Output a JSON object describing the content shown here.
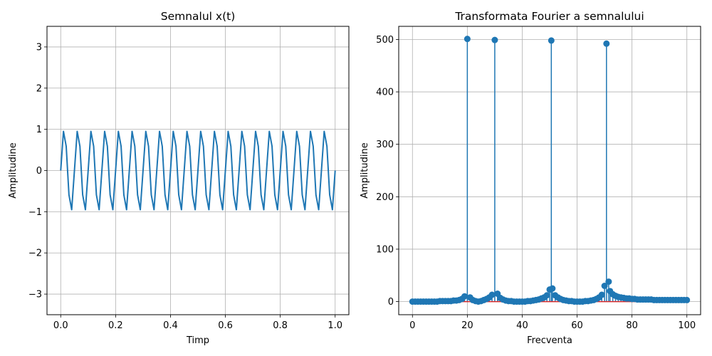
{
  "colors": {
    "series": "#1f77b4",
    "baseline": "#d62728",
    "grid": "#b0b0b0",
    "axis": "#000000",
    "background": "#ffffff"
  },
  "chart_data": [
    {
      "type": "line",
      "title": "Semnalul x(t)",
      "xlabel": "Timp",
      "ylabel": "Amplitudine",
      "xlim": [
        -0.05,
        1.05
      ],
      "ylim": [
        -3.5,
        3.5
      ],
      "xticks": [
        0.0,
        0.2,
        0.4,
        0.6,
        0.8,
        1.0
      ],
      "xtick_labels": [
        "0.0",
        "0.2",
        "0.4",
        "0.6",
        "0.8",
        "1.0"
      ],
      "yticks": [
        -3,
        -2,
        -1,
        0,
        1,
        2,
        3
      ],
      "ytick_labels": [
        "−3",
        "−2",
        "−1",
        "0",
        "1",
        "2",
        "3"
      ],
      "grid": true,
      "signal": {
        "samples": 101,
        "t_range": [
          0,
          1
        ],
        "components": [
          {
            "frequency": 20,
            "amplitude": 1
          },
          {
            "frequency": 30,
            "amplitude": 1
          },
          {
            "frequency": 50,
            "amplitude": 1
          },
          {
            "frequency": 70,
            "amplitude": 1
          }
        ]
      }
    },
    {
      "type": "stem",
      "title": "Transformata Fourier a semnalului",
      "xlabel": "Frecventa",
      "ylabel": "Amplitudine",
      "xlim": [
        -5,
        105
      ],
      "ylim": [
        -25,
        525
      ],
      "xticks": [
        0,
        20,
        40,
        60,
        80,
        100
      ],
      "xtick_labels": [
        "0",
        "20",
        "40",
        "60",
        "80",
        "100"
      ],
      "yticks": [
        0,
        100,
        200,
        300,
        400,
        500
      ],
      "ytick_labels": [
        "0",
        "100",
        "200",
        "300",
        "400",
        "500"
      ],
      "grid": true,
      "baseline": 0,
      "points": [
        [
          0,
          0
        ],
        [
          1,
          0
        ],
        [
          2,
          0
        ],
        [
          3,
          0
        ],
        [
          4,
          0
        ],
        [
          5,
          0
        ],
        [
          6,
          0
        ],
        [
          7,
          0
        ],
        [
          8,
          0
        ],
        [
          9,
          0
        ],
        [
          10,
          1
        ],
        [
          11,
          1
        ],
        [
          12,
          1
        ],
        [
          13,
          1
        ],
        [
          14,
          1
        ],
        [
          15,
          2
        ],
        [
          16,
          2
        ],
        [
          17,
          3
        ],
        [
          18,
          5
        ],
        [
          19,
          10
        ],
        [
          20,
          501
        ],
        [
          21,
          8
        ],
        [
          22,
          3
        ],
        [
          23,
          1
        ],
        [
          24,
          0
        ],
        [
          25,
          1
        ],
        [
          26,
          3
        ],
        [
          27,
          5
        ],
        [
          28,
          8
        ],
        [
          29,
          13
        ],
        [
          30,
          499
        ],
        [
          31,
          15
        ],
        [
          32,
          7
        ],
        [
          33,
          4
        ],
        [
          34,
          2
        ],
        [
          35,
          1
        ],
        [
          36,
          1
        ],
        [
          37,
          0
        ],
        [
          38,
          0
        ],
        [
          39,
          0
        ],
        [
          40,
          0
        ],
        [
          41,
          0
        ],
        [
          42,
          1
        ],
        [
          43,
          1
        ],
        [
          44,
          2
        ],
        [
          45,
          3
        ],
        [
          46,
          4
        ],
        [
          47,
          6
        ],
        [
          48,
          8
        ],
        [
          49,
          12
        ],
        [
          50,
          23
        ],
        [
          50.6,
          498
        ],
        [
          51,
          25
        ],
        [
          52,
          12
        ],
        [
          53,
          8
        ],
        [
          54,
          5
        ],
        [
          55,
          3
        ],
        [
          56,
          2
        ],
        [
          57,
          1
        ],
        [
          58,
          1
        ],
        [
          59,
          0
        ],
        [
          60,
          0
        ],
        [
          61,
          0
        ],
        [
          62,
          0
        ],
        [
          63,
          1
        ],
        [
          64,
          1
        ],
        [
          65,
          2
        ],
        [
          66,
          3
        ],
        [
          67,
          5
        ],
        [
          68,
          8
        ],
        [
          69,
          13
        ],
        [
          70,
          30
        ],
        [
          70.7,
          492
        ],
        [
          71.5,
          38
        ],
        [
          72,
          20
        ],
        [
          73,
          14
        ],
        [
          74,
          11
        ],
        [
          75,
          9
        ],
        [
          76,
          8
        ],
        [
          77,
          7
        ],
        [
          78,
          6
        ],
        [
          79,
          6
        ],
        [
          80,
          5
        ],
        [
          81,
          5
        ],
        [
          82,
          4
        ],
        [
          83,
          4
        ],
        [
          84,
          4
        ],
        [
          85,
          4
        ],
        [
          86,
          4
        ],
        [
          87,
          4
        ],
        [
          88,
          3
        ],
        [
          89,
          3
        ],
        [
          90,
          3
        ],
        [
          91,
          3
        ],
        [
          92,
          3
        ],
        [
          93,
          3
        ],
        [
          94,
          3
        ],
        [
          95,
          3
        ],
        [
          96,
          3
        ],
        [
          97,
          3
        ],
        [
          98,
          3
        ],
        [
          99,
          3
        ],
        [
          100,
          3
        ]
      ]
    }
  ]
}
